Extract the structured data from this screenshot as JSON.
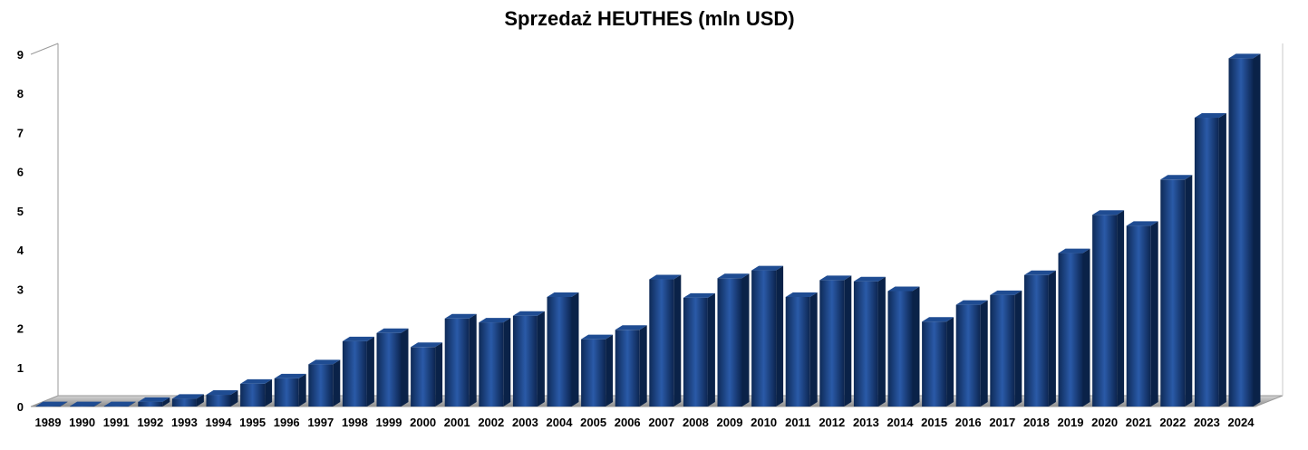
{
  "chart_data": {
    "type": "bar",
    "title": "Sprzedaż HEUTHES (mln USD)",
    "xlabel": "",
    "ylabel": "",
    "ylim": [
      0,
      9
    ],
    "yticks": [
      "0",
      "1",
      "2",
      "3",
      "4",
      "5",
      "6",
      "7",
      "8",
      "9"
    ],
    "categories": [
      "1989",
      "1990",
      "1991",
      "1992",
      "1993",
      "1994",
      "1995",
      "1996",
      "1997",
      "1998",
      "1999",
      "2000",
      "2001",
      "2002",
      "2003",
      "2004",
      "2005",
      "2006",
      "2007",
      "2008",
      "2009",
      "2010",
      "2011",
      "2012",
      "2013",
      "2014",
      "2015",
      "2016",
      "2017",
      "2018",
      "2019",
      "2020",
      "2021",
      "2022",
      "2023",
      "2024"
    ],
    "values": [
      0.01,
      0.01,
      0.01,
      0.12,
      0.2,
      0.3,
      0.58,
      0.72,
      1.08,
      1.67,
      1.88,
      1.52,
      2.25,
      2.15,
      2.32,
      2.8,
      1.72,
      1.96,
      3.25,
      2.78,
      3.28,
      3.48,
      2.8,
      3.23,
      3.2,
      2.95,
      2.17,
      2.6,
      2.85,
      3.36,
      3.92,
      4.9,
      4.62,
      5.8,
      7.38,
      8.9
    ],
    "color": "#1a3f7a",
    "grid": false,
    "legend": false
  }
}
